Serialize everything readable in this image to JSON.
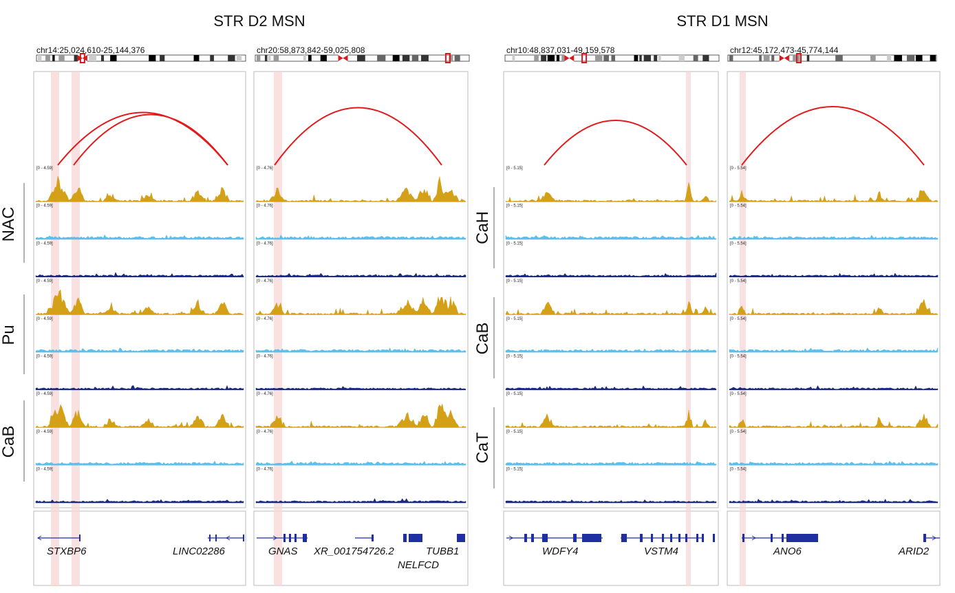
{
  "groups": [
    {
      "title": "STR D2 MSN",
      "row_labels": [
        "NAC",
        "Pu",
        "CaB"
      ]
    },
    {
      "title": "STR D1 MSN",
      "row_labels": [
        "CaH",
        "CaB",
        "CaT"
      ]
    }
  ],
  "panels": [
    {
      "region": "chr14:25,024,610-25,144,376",
      "scale_label": "[0 - 4.59]",
      "genes": [
        {
          "name": "STXBP6"
        },
        {
          "name": "LINC02286"
        }
      ]
    },
    {
      "region": "chr20:58,873,842-59,025,808",
      "scale_label": "[0 - 4.76]",
      "genes": [
        {
          "name": "GNAS"
        },
        {
          "name": "XR_001754726.2"
        },
        {
          "name": "TUBB1"
        },
        {
          "name": "NELFCD"
        }
      ]
    },
    {
      "region": "chr10:48,837,031-49,159,578",
      "scale_label": "[0 - 5.15]",
      "genes": [
        {
          "name": "WDFY4"
        },
        {
          "name": "VSTM4"
        }
      ]
    },
    {
      "region": "chr12:45,172,473-45,774,144",
      "scale_label": "[0 - 5.54]",
      "genes": [
        {
          "name": "ANO6"
        },
        {
          "name": "ARID2"
        }
      ]
    }
  ],
  "track_colors": {
    "gold": "#D4A017",
    "light_blue": "#5BC0EB",
    "navy": "#1A2A80"
  },
  "loop_color": "#E31A1C",
  "highlight_color": "#F8D7D7",
  "gene_color": "#1F2FA0"
}
